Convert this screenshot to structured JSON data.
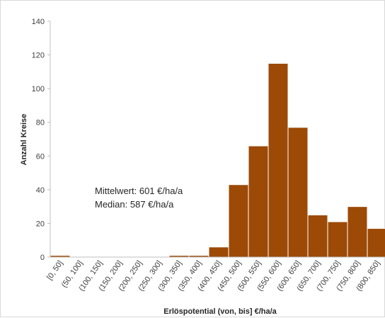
{
  "chart_data": {
    "type": "bar",
    "categories": [
      "[0, 50]",
      "(50, 100]",
      "(100, 150]",
      "(150, 200]",
      "(200, 250]",
      "(250, 300]",
      "(300, 350]",
      "(350, 400]",
      "(400, 450]",
      "(450, 500]",
      "(500, 550]",
      "(550, 600]",
      "(600, 650]",
      "(650, 700]",
      "(700, 750]",
      "(750, 800]",
      "(800, 850]"
    ],
    "values": [
      1,
      0,
      0,
      0,
      0,
      0,
      1,
      1,
      6,
      43,
      66,
      115,
      77,
      25,
      21,
      30,
      17
    ],
    "xlabel": "Erlöspotential (von, bis] €/ha/a",
    "ylabel": "Anzahl Kreise",
    "ylim": [
      0,
      140
    ],
    "yticks": [
      0,
      20,
      40,
      60,
      80,
      100,
      120,
      140
    ],
    "grid": false,
    "legend": "none",
    "bar_color": "#9c4a06",
    "bar_edge_color": "#ffffff",
    "annotations": [
      "Mittelwert: 601 €/ha/a",
      "Median: 587 €/ha/a"
    ]
  }
}
